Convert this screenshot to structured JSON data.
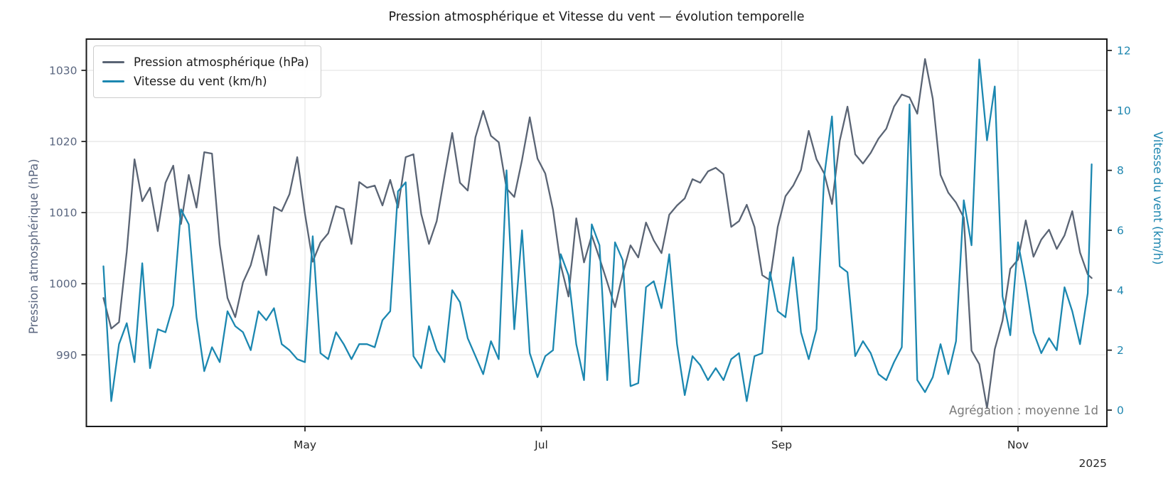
{
  "title": "Pression atmosphérique et Vitesse du vent — évolution temporelle",
  "annotation": "Agrégation : moyenne 1d",
  "year_label": "2025",
  "colors": {
    "pressure": "#5a6474",
    "wind": "#1b87b0",
    "pressure_tick": "#5b6780",
    "wind_tick": "#1f87b0",
    "grid": "#e7e7e7",
    "spine": "#1a1a1a",
    "tick_mark": "#262626",
    "month_label": "#262626",
    "annotation": "#7a7a7a",
    "title": "#1a1a1a"
  },
  "legend": {
    "items": [
      {
        "label": "Pression atmosphérique (hPa)",
        "series": "pressure"
      },
      {
        "label": "Vitesse du vent (km/h)",
        "series": "wind"
      }
    ]
  },
  "axes": {
    "left": {
      "label": "Pression atmosphérique (hPa)",
      "ticks": [
        990,
        1000,
        1010,
        1020,
        1030
      ]
    },
    "right": {
      "label": "Vitesse du vent (km/h)",
      "ticks": [
        0,
        2,
        4,
        6,
        8,
        10,
        12
      ]
    },
    "x": {
      "ticks": [
        {
          "date": "2025-05-01",
          "label": "May"
        },
        {
          "date": "2025-07-01",
          "label": "Jul"
        },
        {
          "date": "2025-09-01",
          "label": "Sep"
        },
        {
          "date": "2025-11-01",
          "label": "Nov"
        }
      ],
      "year": "2025"
    }
  },
  "chart_data": {
    "type": "line",
    "aggregation": "moyenne 1d",
    "x_range": [
      "2025-03-10",
      "2025-11-20"
    ],
    "ylim_left": [
      980,
      1034.5
    ],
    "ylim_right": [
      -0.55,
      12.38
    ],
    "grid": true,
    "legend_position": "upper left",
    "x": [
      "2025-03-10",
      "2025-03-12",
      "2025-03-14",
      "2025-03-16",
      "2025-03-18",
      "2025-03-20",
      "2025-03-22",
      "2025-03-24",
      "2025-03-26",
      "2025-03-28",
      "2025-03-30",
      "2025-04-01",
      "2025-04-03",
      "2025-04-05",
      "2025-04-07",
      "2025-04-09",
      "2025-04-11",
      "2025-04-13",
      "2025-04-15",
      "2025-04-17",
      "2025-04-19",
      "2025-04-21",
      "2025-04-23",
      "2025-04-25",
      "2025-04-27",
      "2025-04-29",
      "2025-05-01",
      "2025-05-03",
      "2025-05-05",
      "2025-05-07",
      "2025-05-09",
      "2025-05-11",
      "2025-05-13",
      "2025-05-15",
      "2025-05-17",
      "2025-05-19",
      "2025-05-21",
      "2025-05-23",
      "2025-05-25",
      "2025-05-27",
      "2025-05-29",
      "2025-05-31",
      "2025-06-02",
      "2025-06-04",
      "2025-06-06",
      "2025-06-08",
      "2025-06-10",
      "2025-06-12",
      "2025-06-14",
      "2025-06-16",
      "2025-06-18",
      "2025-06-20",
      "2025-06-22",
      "2025-06-24",
      "2025-06-26",
      "2025-06-28",
      "2025-06-30",
      "2025-07-02",
      "2025-07-04",
      "2025-07-06",
      "2025-07-08",
      "2025-07-10",
      "2025-07-12",
      "2025-07-14",
      "2025-07-16",
      "2025-07-18",
      "2025-07-20",
      "2025-07-22",
      "2025-07-24",
      "2025-07-26",
      "2025-07-28",
      "2025-07-30",
      "2025-08-01",
      "2025-08-03",
      "2025-08-05",
      "2025-08-07",
      "2025-08-09",
      "2025-08-11",
      "2025-08-13",
      "2025-08-15",
      "2025-08-17",
      "2025-08-19",
      "2025-08-21",
      "2025-08-23",
      "2025-08-25",
      "2025-08-27",
      "2025-08-29",
      "2025-08-31",
      "2025-09-02",
      "2025-09-04",
      "2025-09-06",
      "2025-09-08",
      "2025-09-10",
      "2025-09-12",
      "2025-09-14",
      "2025-09-16",
      "2025-09-18",
      "2025-09-20",
      "2025-09-22",
      "2025-09-24",
      "2025-09-26",
      "2025-09-28",
      "2025-09-30",
      "2025-10-02",
      "2025-10-04",
      "2025-10-06",
      "2025-10-08",
      "2025-10-10",
      "2025-10-12",
      "2025-10-14",
      "2025-10-16",
      "2025-10-18",
      "2025-10-20",
      "2025-10-22",
      "2025-10-24",
      "2025-10-26",
      "2025-10-28",
      "2025-10-30",
      "2025-11-01",
      "2025-11-03",
      "2025-11-05",
      "2025-11-07",
      "2025-11-09",
      "2025-11-11",
      "2025-11-13",
      "2025-11-15",
      "2025-11-17",
      "2025-11-19",
      "2025-11-20"
    ],
    "series": [
      {
        "name": "Pression atmosphérique (hPa)",
        "axis": "left",
        "unit": "hPa",
        "values": [
          998.0,
          993.7,
          994.6,
          1004.5,
          1017.5,
          1011.6,
          1013.5,
          1007.4,
          1014.2,
          1016.6,
          1008.4,
          1015.3,
          1010.7,
          1018.5,
          1018.3,
          1005.5,
          998.0,
          995.3,
          1000.2,
          1002.6,
          1006.8,
          1001.2,
          1010.8,
          1010.2,
          1012.6,
          1017.8,
          1009.8,
          1003.1,
          1005.8,
          1007.1,
          1010.9,
          1010.5,
          1005.6,
          1014.3,
          1013.5,
          1013.8,
          1011.0,
          1014.6,
          1010.7,
          1017.8,
          1018.2,
          1009.8,
          1005.6,
          1008.8,
          1015.1,
          1021.2,
          1014.2,
          1013.1,
          1020.6,
          1024.3,
          1020.8,
          1019.9,
          1013.4,
          1012.2,
          1017.4,
          1023.4,
          1017.6,
          1015.5,
          1010.4,
          1002.6,
          998.2,
          1009.2,
          1003.0,
          1006.8,
          1003.6,
          1000.2,
          996.7,
          1001.4,
          1005.4,
          1003.7,
          1008.6,
          1006.1,
          1004.3,
          1009.7,
          1011.0,
          1012.0,
          1014.7,
          1014.2,
          1015.8,
          1016.3,
          1015.4,
          1008.0,
          1008.8,
          1011.1,
          1008.0,
          1001.2,
          1000.5,
          1008.0,
          1012.3,
          1013.8,
          1016.0,
          1021.5,
          1017.5,
          1015.5,
          1011.2,
          1020.1,
          1024.9,
          1018.2,
          1016.9,
          1018.4,
          1020.4,
          1021.8,
          1024.9,
          1026.6,
          1026.2,
          1023.9,
          1031.6,
          1026.0,
          1015.3,
          1012.8,
          1011.4,
          1009.3,
          990.6,
          988.7,
          982.5,
          990.8,
          994.8,
          1002.1,
          1003.4,
          1008.9,
          1003.8,
          1006.2,
          1007.6,
          1004.9,
          1006.8,
          1010.2,
          1004.4,
          1001.3,
          1000.8
        ]
      },
      {
        "name": "Vitesse du vent (km/h)",
        "axis": "right",
        "unit": "km/h",
        "values": [
          4.8,
          0.3,
          2.2,
          2.9,
          1.6,
          4.9,
          1.4,
          2.7,
          2.6,
          3.5,
          6.7,
          6.2,
          3.1,
          1.3,
          2.1,
          1.6,
          3.3,
          2.8,
          2.6,
          2.0,
          3.3,
          3.0,
          3.4,
          2.2,
          2.0,
          1.7,
          1.6,
          5.8,
          1.9,
          1.7,
          2.6,
          2.2,
          1.7,
          2.2,
          2.2,
          2.1,
          3.0,
          3.3,
          7.3,
          7.6,
          1.8,
          1.4,
          2.8,
          2.0,
          1.6,
          4.0,
          3.6,
          2.4,
          1.8,
          1.2,
          2.3,
          1.7,
          8.0,
          2.7,
          6.0,
          1.9,
          1.1,
          1.8,
          2.0,
          5.2,
          4.5,
          2.2,
          1.0,
          6.2,
          5.5,
          1.0,
          5.6,
          5.0,
          0.8,
          0.9,
          4.1,
          4.3,
          3.4,
          5.2,
          2.2,
          0.5,
          1.8,
          1.5,
          1.0,
          1.4,
          1.0,
          1.7,
          1.9,
          0.3,
          1.8,
          1.9,
          4.6,
          3.3,
          3.1,
          5.1,
          2.6,
          1.7,
          2.7,
          7.8,
          9.8,
          4.8,
          4.6,
          1.8,
          2.3,
          1.9,
          1.2,
          1.0,
          1.6,
          2.1,
          10.2,
          1.0,
          0.6,
          1.1,
          2.2,
          1.2,
          2.3,
          7.0,
          5.5,
          11.7,
          9.0,
          10.8,
          3.8,
          2.5,
          5.6,
          4.2,
          2.6,
          1.9,
          2.4,
          2.0,
          4.1,
          3.3,
          2.2,
          3.9,
          8.2
        ]
      }
    ]
  }
}
